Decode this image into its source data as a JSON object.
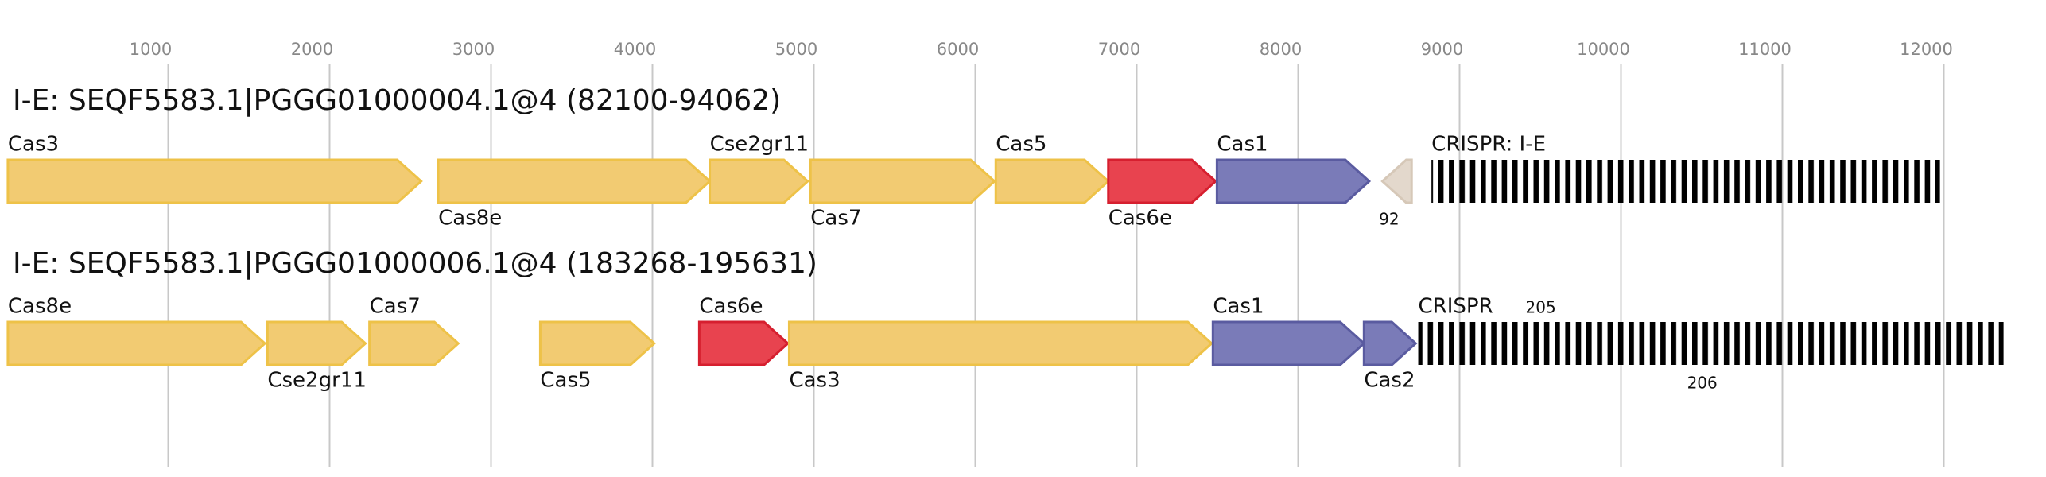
{
  "axis": {
    "ticks": [
      1000,
      2000,
      3000,
      4000,
      5000,
      6000,
      7000,
      8000,
      9000,
      10000,
      11000,
      12000
    ]
  },
  "tracks": [
    {
      "title": "I-E: SEQF5583.1|PGGG01000004.1@4 (82100-94062)",
      "genes": [
        {
          "label": "Cas3",
          "start": 7,
          "end": 2567,
          "strand": "+",
          "color": "#f2cb72",
          "stroke": "#eec248"
        },
        {
          "label": "Cas8e",
          "start": 2673,
          "end": 4355,
          "strand": "+",
          "color": "#f2cb72",
          "stroke": "#eec248"
        },
        {
          "label": "Cse2gr11",
          "start": 4355,
          "end": 4962,
          "strand": "+",
          "color": "#f2cb72",
          "stroke": "#eec248"
        },
        {
          "label": "Cas7",
          "start": 4979,
          "end": 6119,
          "strand": "+",
          "color": "#f2cb72",
          "stroke": "#eec248"
        },
        {
          "label": "Cas5",
          "start": 6127,
          "end": 6824,
          "strand": "+",
          "color": "#f2cb72",
          "stroke": "#eec248"
        },
        {
          "label": "Cas6e",
          "start": 6824,
          "end": 7489,
          "strand": "+",
          "color": "#e8434f",
          "stroke": "#d61f2f"
        },
        {
          "label": "Cas1",
          "start": 7497,
          "end": 8440,
          "strand": "+",
          "color": "#7a7bb8",
          "stroke": "#5a5ba0"
        },
        {
          "number": 92,
          "start": 8522,
          "end": 8703,
          "strand": "-",
          "color": "#e3d8cc",
          "stroke": "#d6c8b8"
        }
      ],
      "crispr": {
        "label": "CRISPR: I-E",
        "start": 8826,
        "end": 11976
      }
    },
    {
      "title": "I-E: SEQF5583.1|PGGG01000006.1@4 (183268-195631)",
      "genes": [
        {
          "label": "Cas8e",
          "start": 7,
          "end": 1599,
          "strand": "+",
          "color": "#f2cb72",
          "stroke": "#eec248"
        },
        {
          "label": "Cse2gr11",
          "start": 1615,
          "end": 2222,
          "strand": "+",
          "color": "#f2cb72",
          "stroke": "#eec248"
        },
        {
          "label": "Cas7",
          "start": 2247,
          "end": 2797,
          "strand": "+",
          "color": "#f2cb72",
          "stroke": "#eec248"
        },
        {
          "label": "Cas5",
          "start": 3305,
          "end": 4011,
          "strand": "+",
          "color": "#f2cb72",
          "stroke": "#eec248"
        },
        {
          "label": "Cas6e",
          "start": 4290,
          "end": 4839,
          "strand": "+",
          "color": "#e8434f",
          "stroke": "#d61f2f"
        },
        {
          "label": "Cas3",
          "start": 4847,
          "end": 7464,
          "strand": "+",
          "color": "#f2cb72",
          "stroke": "#eec248"
        },
        {
          "label": "Cas1",
          "start": 7472,
          "end": 8408,
          "strand": "+",
          "color": "#7a7bb8",
          "stroke": "#5a5ba0"
        },
        {
          "label": "Cas2",
          "start": 8408,
          "end": 8728,
          "strand": "+",
          "color": "#7a7bb8",
          "stroke": "#5a5ba0"
        }
      ],
      "crispr": {
        "label": "CRISPR",
        "start": 8744,
        "end": 12370,
        "above": 205,
        "below": 206
      }
    }
  ]
}
